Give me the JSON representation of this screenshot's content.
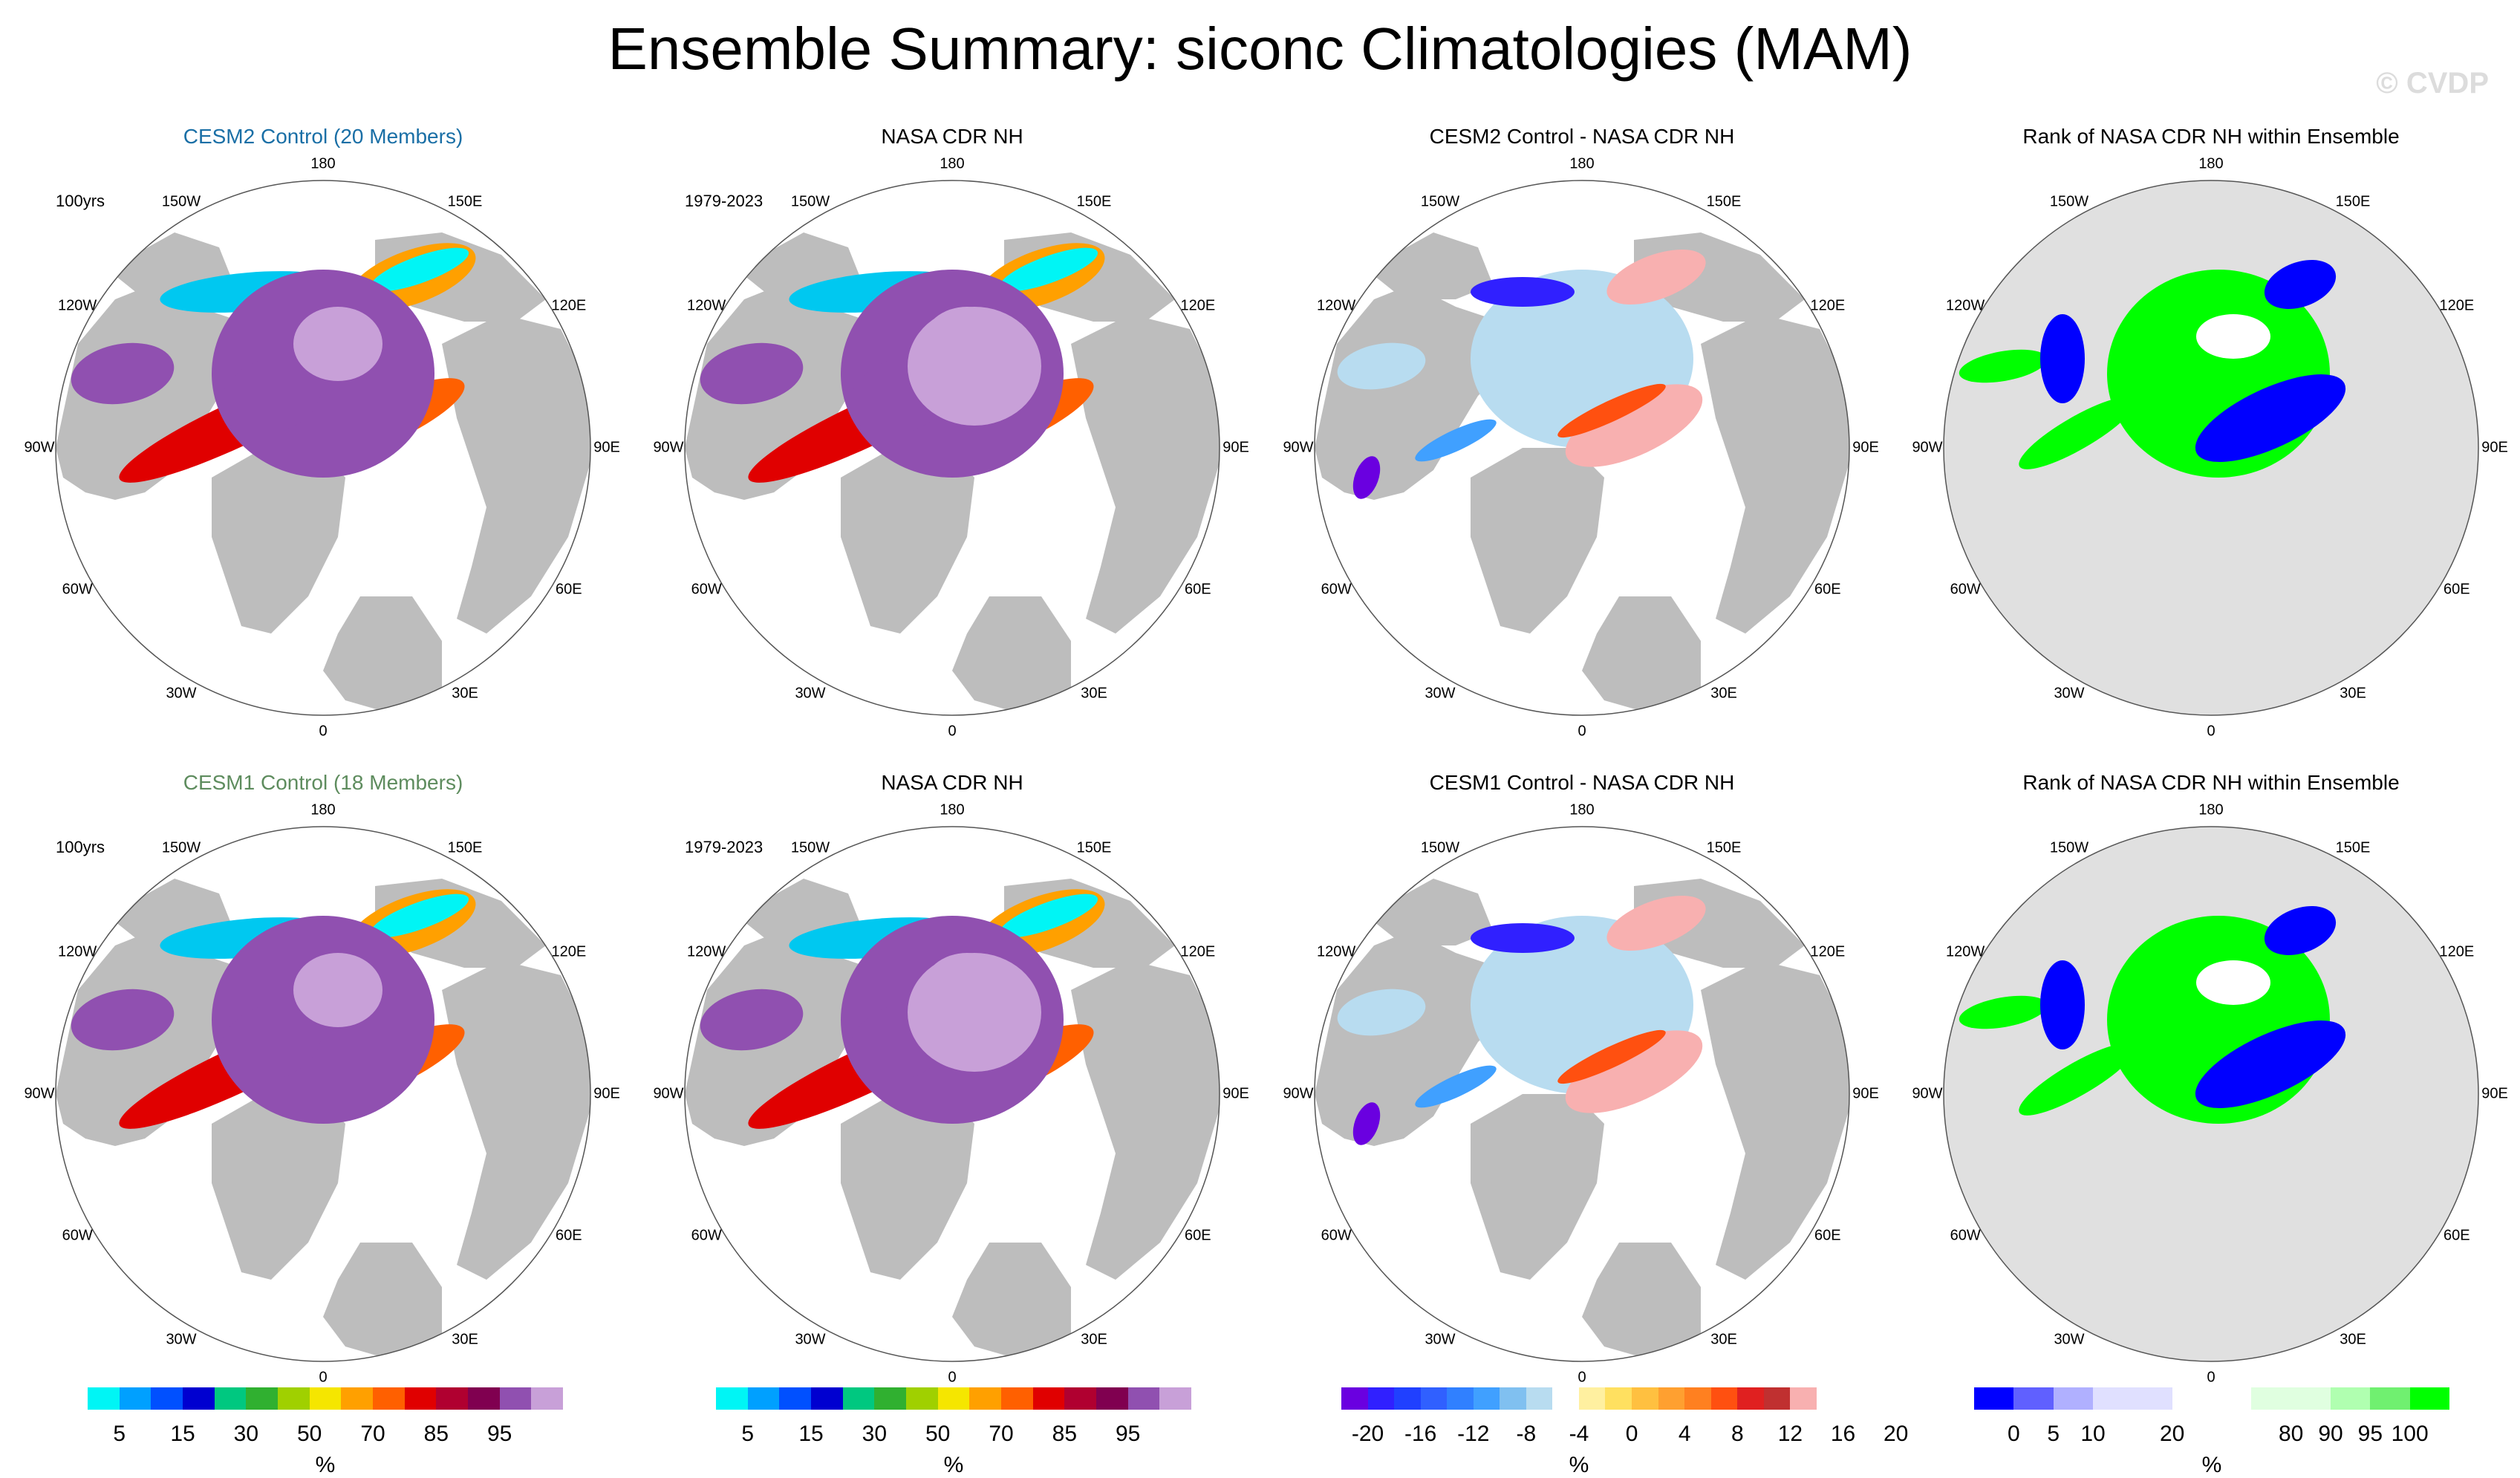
{
  "title": "Ensemble Summary: siconc Climatologies (MAM)",
  "watermark": "© CVDP",
  "lon_labels": [
    "180",
    "150E",
    "120E",
    "90E",
    "60E",
    "30E",
    "0",
    "30W",
    "60W",
    "90W",
    "120W",
    "150W"
  ],
  "colors": {
    "land": "#bdbdbd",
    "ocean": "#ffffff",
    "cesm2_title": "#1a6fa6",
    "cesm1_title": "#5e8c5e"
  },
  "rows": [
    {
      "panels": [
        {
          "title": "CESM2 Control (20 Members)",
          "title_color": "cesm2_title",
          "corner": "100yrs",
          "kind": "conc"
        },
        {
          "title": "NASA CDR NH",
          "title_color": "",
          "corner": "1979-2023",
          "kind": "conc"
        },
        {
          "title": "CESM2 Control - NASA CDR NH",
          "title_color": "",
          "corner": "",
          "kind": "diff"
        },
        {
          "title": "Rank of NASA CDR NH within Ensemble",
          "title_color": "",
          "corner": "",
          "kind": "rank"
        }
      ]
    },
    {
      "panels": [
        {
          "title": "CESM1 Control (18 Members)",
          "title_color": "cesm1_title",
          "corner": "100yrs",
          "kind": "conc"
        },
        {
          "title": "NASA CDR NH",
          "title_color": "",
          "corner": "1979-2023",
          "kind": "conc"
        },
        {
          "title": "CESM1 Control - NASA CDR NH",
          "title_color": "",
          "corner": "",
          "kind": "diff"
        },
        {
          "title": "Rank of NASA CDR NH within Ensemble",
          "title_color": "",
          "corner": "",
          "kind": "rank"
        }
      ]
    }
  ],
  "colorbars": [
    {
      "kind": "conc",
      "unit": "%",
      "colors": [
        "#00f5f5",
        "#00a0ff",
        "#0050ff",
        "#0000d0",
        "#00c880",
        "#30b030",
        "#a0d000",
        "#f5e600",
        "#ffa000",
        "#ff6000",
        "#e00000",
        "#b00030",
        "#800050",
        "#9050b0",
        "#c8a0d8"
      ],
      "ticks": [
        "5",
        "15",
        "30",
        "50",
        "70",
        "85",
        "95"
      ]
    },
    {
      "kind": "conc",
      "unit": "%",
      "colors": [
        "#00f5f5",
        "#00a0ff",
        "#0050ff",
        "#0000d0",
        "#00c880",
        "#30b030",
        "#a0d000",
        "#f5e600",
        "#ffa000",
        "#ff6000",
        "#e00000",
        "#b00030",
        "#800050",
        "#9050b0",
        "#c8a0d8"
      ],
      "ticks": [
        "5",
        "15",
        "30",
        "50",
        "70",
        "85",
        "95"
      ]
    },
    {
      "kind": "diff",
      "unit": "%",
      "colors": [
        "#6a00e0",
        "#3020ff",
        "#2040ff",
        "#3060ff",
        "#3080ff",
        "#40a0ff",
        "#80c0f0",
        "#b8dcf0",
        "#ffffff",
        "#fff0a0",
        "#ffe060",
        "#ffc040",
        "#ffa030",
        "#ff8020",
        "#ff5010",
        "#e02020",
        "#c03030",
        "#f8b0b0"
      ],
      "ticks": [
        "-20",
        "-16",
        "-12",
        "-8",
        "-4",
        "0",
        "4",
        "8",
        "12",
        "16",
        "20"
      ]
    },
    {
      "kind": "rank",
      "unit": "%",
      "colors": [
        "#0000ff",
        "#6060ff",
        "#b0b0ff",
        "#e0e0ff",
        "#e0e0ff",
        "#ffffff",
        "#ffffff",
        "#e0ffe0",
        "#e0ffe0",
        "#b0ffb0",
        "#70f070",
        "#00ff00"
      ],
      "ticks": [
        "0",
        "5",
        "10",
        "20",
        "80",
        "90",
        "95",
        "100"
      ]
    }
  ]
}
